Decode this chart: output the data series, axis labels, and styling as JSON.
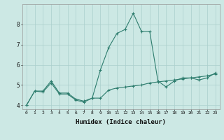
{
  "x": [
    0,
    1,
    2,
    3,
    4,
    5,
    6,
    7,
    8,
    9,
    10,
    11,
    12,
    13,
    14,
    15,
    16,
    17,
    18,
    19,
    20,
    21,
    22,
    23
  ],
  "y_main": [
    4.0,
    4.7,
    4.7,
    5.2,
    4.6,
    4.6,
    4.3,
    4.2,
    4.35,
    5.75,
    6.85,
    7.55,
    7.75,
    8.55,
    7.65,
    7.65,
    5.2,
    4.9,
    5.2,
    5.35,
    5.35,
    5.25,
    5.35,
    5.6
  ],
  "y_low": [
    4.0,
    4.7,
    4.65,
    5.1,
    4.55,
    4.55,
    4.25,
    4.15,
    4.35,
    4.35,
    4.75,
    4.85,
    4.9,
    4.95,
    5.0,
    5.1,
    5.15,
    5.2,
    5.25,
    5.3,
    5.35,
    5.4,
    5.45,
    5.55
  ],
  "line_color": "#2e7d6e",
  "bg_color": "#cce8e4",
  "grid_color": "#aacfcc",
  "xlabel": "Humidex (Indice chaleur)",
  "ylim": [
    3.8,
    9.0
  ],
  "xlim": [
    -0.5,
    23.5
  ],
  "yticks": [
    4,
    5,
    6,
    7,
    8
  ],
  "xticks": [
    0,
    1,
    2,
    3,
    4,
    5,
    6,
    7,
    8,
    9,
    10,
    11,
    12,
    13,
    14,
    15,
    16,
    17,
    18,
    19,
    20,
    21,
    22,
    23
  ]
}
